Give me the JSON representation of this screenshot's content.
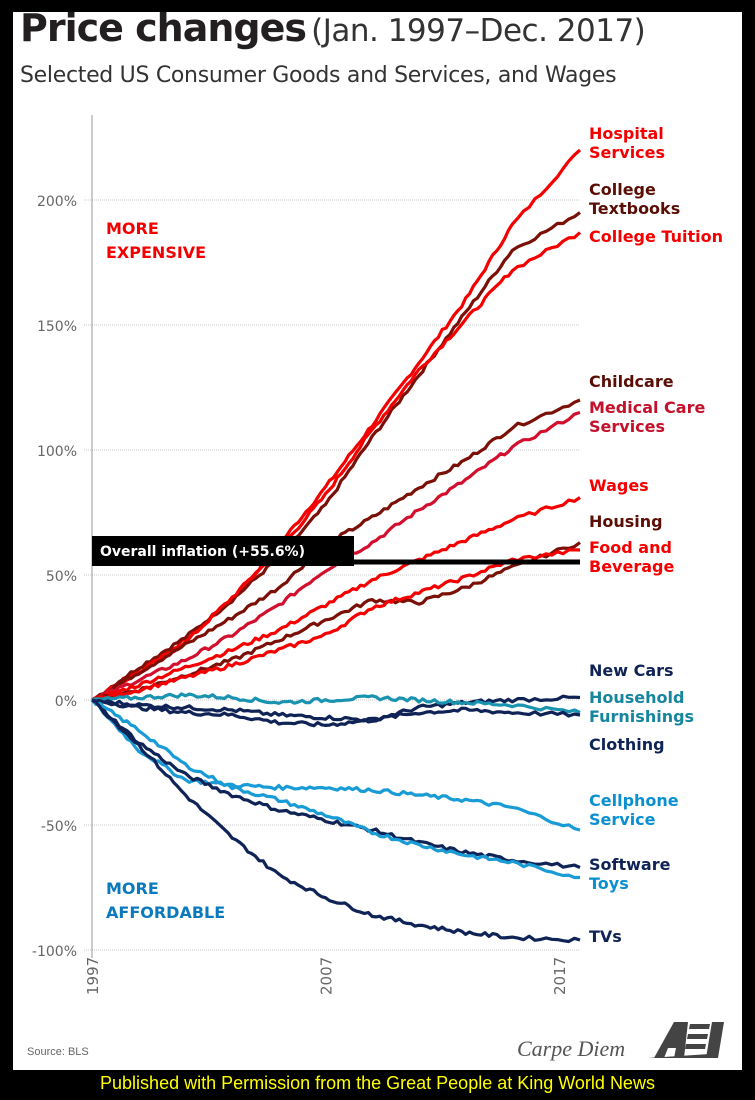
{
  "title_bold": "Price changes",
  "title_light": "(Jan. 1997–Dec. 2017)",
  "subtitle": "Selected US Consumer Goods and Services, and Wages",
  "source": "Source:  BLS",
  "brand": "Carpe Diem",
  "brand_logo": "AEI",
  "footer": "Published with Permission from the Great People at King World News",
  "chart_data": {
    "type": "line",
    "title": "Price changes (Jan. 1997–Dec. 2017)",
    "subtitle": "Selected US Consumer Goods and Services, and Wages",
    "xlabel": "",
    "ylabel": "",
    "x_ticks": [
      "1997",
      "2007",
      "2017"
    ],
    "xlim": [
      1997,
      2018
    ],
    "y_ticks": [
      "200%",
      "150%",
      "100%",
      "50%",
      "0%",
      "-50%",
      "-100%"
    ],
    "y_tick_values": [
      200,
      150,
      100,
      50,
      0,
      -50,
      -100
    ],
    "ylim": [
      -100,
      235
    ],
    "grid": true,
    "annotations": {
      "more_expensive": [
        "MORE",
        "EXPENSIVE"
      ],
      "more_affordable": [
        "MORE",
        "AFFORDABLE"
      ],
      "inflation_label": "Overall inflation (+55.6%)",
      "inflation_value": 55.6
    },
    "colors": {
      "bright_red": "#f40000",
      "dark_red": "#7a1008",
      "crimson": "#d2102e",
      "navy": "#0f2356",
      "teal": "#1a93b0",
      "sky": "#199bd6"
    },
    "x": [
      1997,
      1999,
      2001,
      2003,
      2005,
      2007,
      2009,
      2011,
      2013,
      2015,
      2017.9
    ],
    "series": [
      {
        "name": "Hospital Services",
        "label": [
          "Hospital",
          "Services"
        ],
        "color": "#f40000",
        "values": [
          0,
          12,
          24,
          40,
          62,
          85,
          110,
          135,
          160,
          190,
          220
        ]
      },
      {
        "name": "College Textbooks",
        "label": [
          "College",
          "Textbooks"
        ],
        "color": "#7a1008",
        "values": [
          0,
          13,
          25,
          40,
          57,
          78,
          105,
          130,
          155,
          180,
          195
        ]
      },
      {
        "name": "College Tuition",
        "label": [
          "College Tuition"
        ],
        "color": "#f40000",
        "values": [
          0,
          11,
          23,
          41,
          60,
          82,
          108,
          132,
          152,
          172,
          187
        ]
      },
      {
        "name": "Childcare",
        "label": [
          "Childcare"
        ],
        "color": "#7a1008",
        "values": [
          0,
          11,
          22,
          33,
          45,
          62,
          73,
          85,
          96,
          109,
          120
        ]
      },
      {
        "name": "Medical Care Services",
        "label": [
          "Medical Care",
          "Services"
        ],
        "color": "#d2102e",
        "values": [
          0,
          8,
          16,
          26,
          38,
          52,
          63,
          76,
          88,
          101,
          115
        ]
      },
      {
        "name": "Wages",
        "label": [
          "Wages"
        ],
        "color": "#f40000",
        "values": [
          0,
          6,
          13,
          20,
          28,
          38,
          48,
          56,
          64,
          72,
          81
        ]
      },
      {
        "name": "Housing",
        "label": [
          "Housing"
        ],
        "color": "#7a1008",
        "values": [
          0,
          4,
          10,
          16,
          24,
          32,
          40,
          39,
          45,
          53,
          63
        ]
      },
      {
        "name": "Food and Beverage",
        "label": [
          "Food and",
          "Beverage"
        ],
        "color": "#f40000",
        "values": [
          0,
          4,
          9,
          14,
          20,
          26,
          37,
          43,
          49,
          56,
          60
        ]
      },
      {
        "name": "New Cars",
        "label": [
          "New Cars"
        ],
        "color": "#0f2356",
        "values": [
          0,
          -2,
          -3,
          -4,
          -6,
          -7,
          -8,
          -3,
          -1,
          0,
          1
        ]
      },
      {
        "name": "Household Furnishings",
        "label": [
          "Household",
          "Furnishings"
        ],
        "color": "#1a93b0",
        "values": [
          0,
          1,
          2,
          1,
          -1,
          0,
          1,
          0,
          -1,
          -2,
          -5
        ]
      },
      {
        "name": "Clothing",
        "label": [
          "Clothing"
        ],
        "color": "#0f2356",
        "values": [
          0,
          -3,
          -5,
          -6,
          -9,
          -10,
          -8,
          -5,
          -4,
          -5,
          -6
        ]
      },
      {
        "name": "Cellphone Service",
        "label": [
          "Cellphone",
          "Service"
        ],
        "color": "#199bd6",
        "values": [
          0,
          -20,
          -32,
          -34,
          -35,
          -35,
          -36,
          -38,
          -40,
          -43,
          -52
        ]
      },
      {
        "name": "Software",
        "label": [
          "Software"
        ],
        "color": "#0f2356",
        "values": [
          0,
          -17,
          -30,
          -38,
          -44,
          -48,
          -52,
          -57,
          -61,
          -64,
          -67
        ]
      },
      {
        "name": "Toys",
        "label": [
          "Toys"
        ],
        "color": "#199bd6",
        "values": [
          0,
          -12,
          -26,
          -35,
          -40,
          -46,
          -53,
          -58,
          -62,
          -65,
          -71
        ]
      },
      {
        "name": "TVs",
        "label": [
          "TVs"
        ],
        "color": "#0f2356",
        "values": [
          0,
          -18,
          -38,
          -55,
          -70,
          -79,
          -86,
          -90,
          -93,
          -95,
          -96
        ]
      }
    ]
  }
}
